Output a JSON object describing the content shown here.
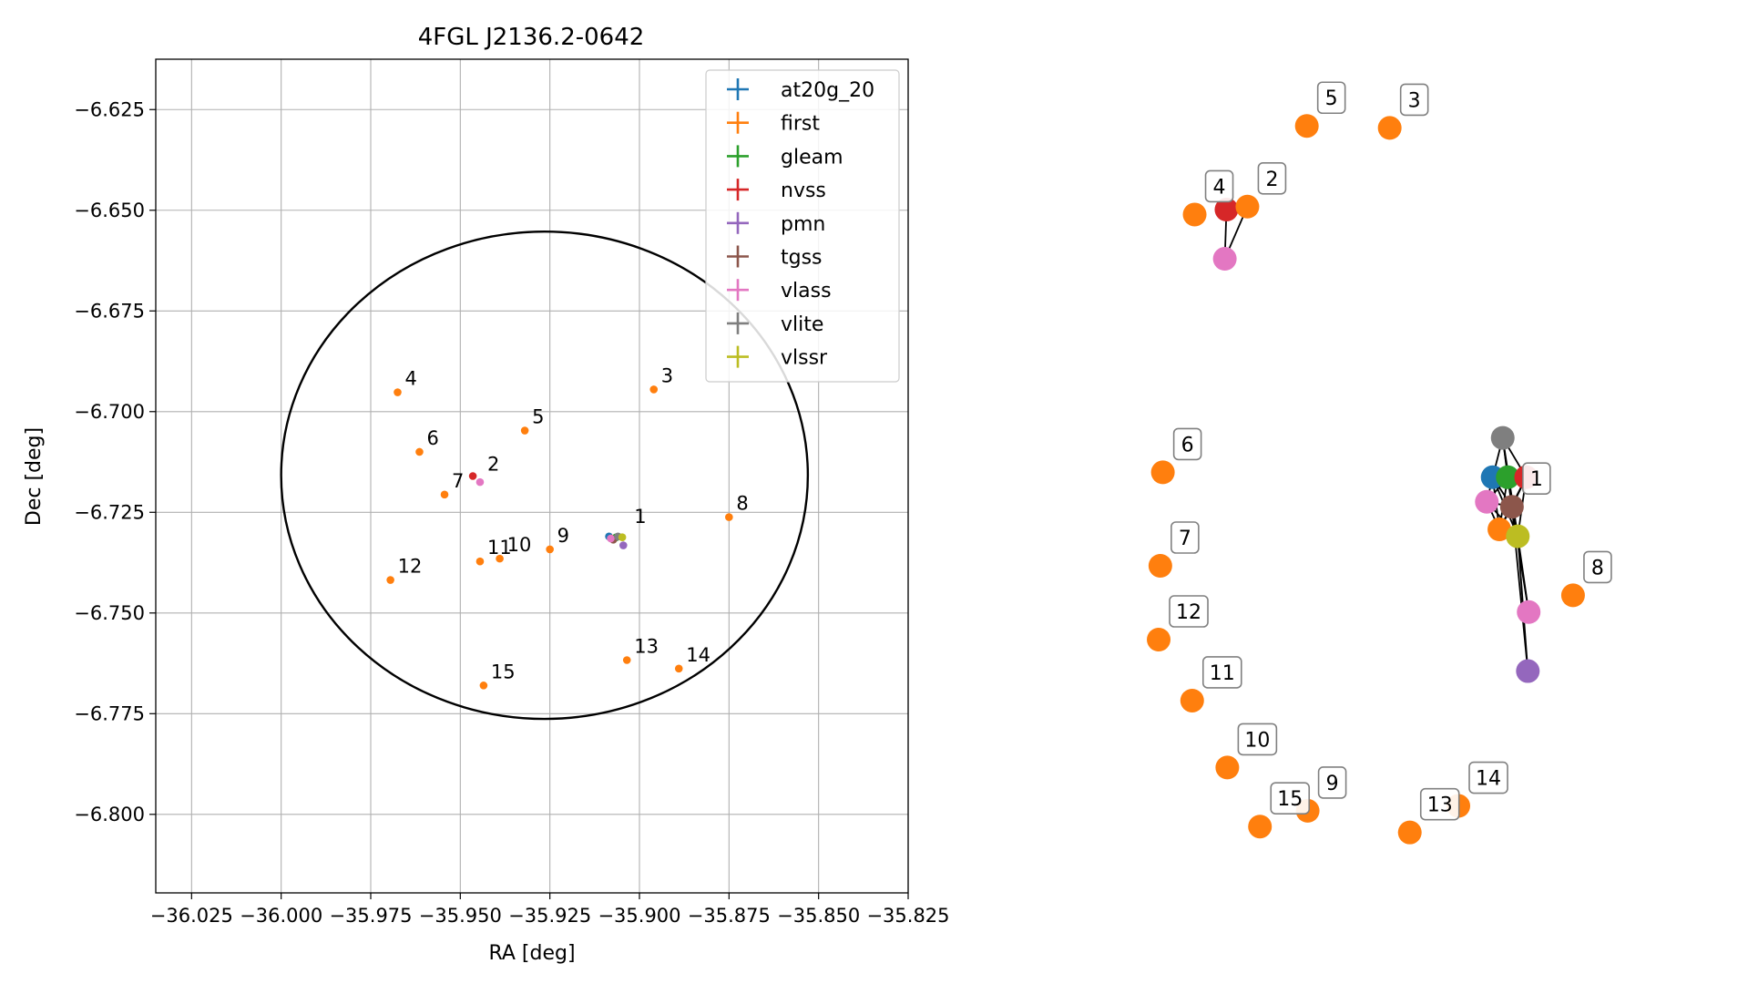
{
  "chart_data": [
    {
      "type": "scatter",
      "title": "4FGL J2136.2-0642",
      "xlabel": "RA [deg]",
      "ylabel": "Dec [deg]",
      "xlim": [
        -36.035,
        -35.825
      ],
      "ylim": [
        -6.8195,
        -6.6125
      ],
      "xticks": [
        -36.025,
        -36.0,
        -35.975,
        -35.95,
        -35.925,
        -35.9,
        -35.875,
        -35.85,
        -35.825
      ],
      "xtick_labels": [
        "−36.025",
        "−36.000",
        "−35.975",
        "−35.950",
        "−35.925",
        "−35.900",
        "−35.875",
        "−35.850",
        "−35.825"
      ],
      "yticks": [
        -6.625,
        -6.65,
        -6.675,
        -6.7,
        -6.725,
        -6.75,
        -6.775,
        -6.8
      ],
      "ytick_labels": [
        "−6.625",
        "−6.650",
        "−6.675",
        "−6.700",
        "−6.725",
        "−6.750",
        "−6.775",
        "−6.800"
      ],
      "grid": true,
      "legend_position": "top-right",
      "circle": {
        "center": [
          -35.9265,
          -6.7158
        ],
        "radius_ra": 0.0735,
        "radius_dec": 0.0605
      },
      "series": [
        {
          "name": "at20g_20",
          "color": "#1f77b4",
          "points": [
            [
              -35.9085,
              -6.731
            ]
          ]
        },
        {
          "name": "first",
          "color": "#ff7f0e",
          "points": [
            [
              -35.9078,
              -6.7315
            ],
            [
              -35.896,
              -6.6945
            ],
            [
              -35.9675,
              -6.6952
            ],
            [
              -35.932,
              -6.7047
            ],
            [
              -35.9614,
              -6.71
            ],
            [
              -35.9544,
              -6.7206
            ],
            [
              -35.875,
              -6.7262
            ],
            [
              -35.925,
              -6.7342
            ],
            [
              -35.939,
              -6.7365
            ],
            [
              -35.9445,
              -6.7372
            ],
            [
              -35.9695,
              -6.7418
            ],
            [
              -35.9035,
              -6.7617
            ],
            [
              -35.889,
              -6.7638
            ],
            [
              -35.9435,
              -6.768
            ]
          ]
        },
        {
          "name": "gleam",
          "color": "#2ca02c",
          "points": [
            [
              -35.9065,
              -6.7312
            ]
          ]
        },
        {
          "name": "nvss",
          "color": "#d62728",
          "points": [
            [
              -35.9465,
              -6.716
            ]
          ]
        },
        {
          "name": "pmn",
          "color": "#9467bd",
          "points": [
            [
              -35.9045,
              -6.7332
            ]
          ]
        },
        {
          "name": "tgss",
          "color": "#8c564b",
          "points": [
            [
              -35.9073,
              -6.7318
            ]
          ]
        },
        {
          "name": "vlass",
          "color": "#e377c2",
          "points": [
            [
              -35.9445,
              -6.7175
            ],
            [
              -35.908,
              -6.7315
            ]
          ]
        },
        {
          "name": "vlite",
          "color": "#7f7f7f",
          "points": [
            [
              -35.906,
              -6.731
            ]
          ]
        },
        {
          "name": "vlssr",
          "color": "#bcbd22",
          "points": [
            [
              -35.9048,
              -6.7312
            ]
          ]
        }
      ],
      "annotations": [
        {
          "text": "1",
          "x": -35.9035,
          "y": -6.7295
        },
        {
          "text": "2",
          "x": -35.9445,
          "y": -6.7165
        },
        {
          "text": "3",
          "x": -35.896,
          "y": -6.6945
        },
        {
          "text": "4",
          "x": -35.9675,
          "y": -6.6952
        },
        {
          "text": "5",
          "x": -35.932,
          "y": -6.7047
        },
        {
          "text": "6",
          "x": -35.9614,
          "y": -6.71
        },
        {
          "text": "7",
          "x": -35.9544,
          "y": -6.7206
        },
        {
          "text": "8",
          "x": -35.875,
          "y": -6.7262
        },
        {
          "text": "9",
          "x": -35.925,
          "y": -6.7342
        },
        {
          "text": "10",
          "x": -35.939,
          "y": -6.7365
        },
        {
          "text": "11",
          "x": -35.9445,
          "y": -6.7372
        },
        {
          "text": "12",
          "x": -35.9695,
          "y": -6.7418
        },
        {
          "text": "13",
          "x": -35.9035,
          "y": -6.7617
        },
        {
          "text": "14",
          "x": -35.889,
          "y": -6.7638
        },
        {
          "text": "15",
          "x": -35.9435,
          "y": -6.768
        }
      ]
    },
    {
      "type": "network",
      "nodes": [
        {
          "id": "n1-at20g",
          "color": "#1f77b4",
          "x": 0.695,
          "y": 0.515
        },
        {
          "id": "n1-gleam",
          "color": "#2ca02c",
          "x": 0.713,
          "y": 0.515
        },
        {
          "id": "n1-nvss",
          "color": "#d62728",
          "x": 0.735,
          "y": 0.515
        },
        {
          "id": "n1-vlite",
          "color": "#7f7f7f",
          "x": 0.707,
          "y": 0.555
        },
        {
          "id": "n1-vlass-a",
          "color": "#e377c2",
          "x": 0.688,
          "y": 0.49
        },
        {
          "id": "n1-tgss",
          "color": "#8c564b",
          "x": 0.718,
          "y": 0.485
        },
        {
          "id": "n1-first",
          "color": "#ff7f0e",
          "x": 0.703,
          "y": 0.462
        },
        {
          "id": "n1-vlssr",
          "color": "#bcbd22",
          "x": 0.725,
          "y": 0.455
        },
        {
          "id": "n1-vlass-b",
          "color": "#e377c2",
          "x": 0.738,
          "y": 0.378
        },
        {
          "id": "n1-pmn",
          "color": "#9467bd",
          "x": 0.737,
          "y": 0.318
        },
        {
          "id": "n2-nvss",
          "color": "#d62728",
          "x": 0.377,
          "y": 0.787
        },
        {
          "id": "n2-first",
          "color": "#ff7f0e",
          "x": 0.402,
          "y": 0.79
        },
        {
          "id": "n2-vlass",
          "color": "#e377c2",
          "x": 0.375,
          "y": 0.737
        },
        {
          "id": "n3",
          "color": "#ff7f0e",
          "x": 0.572,
          "y": 0.87
        },
        {
          "id": "n4",
          "color": "#ff7f0e",
          "x": 0.339,
          "y": 0.782
        },
        {
          "id": "n5",
          "color": "#ff7f0e",
          "x": 0.473,
          "y": 0.872
        },
        {
          "id": "n6",
          "color": "#ff7f0e",
          "x": 0.301,
          "y": 0.52
        },
        {
          "id": "n7",
          "color": "#ff7f0e",
          "x": 0.298,
          "y": 0.425
        },
        {
          "id": "n8",
          "color": "#ff7f0e",
          "x": 0.791,
          "y": 0.395
        },
        {
          "id": "n9",
          "color": "#ff7f0e",
          "x": 0.474,
          "y": 0.176
        },
        {
          "id": "n10",
          "color": "#ff7f0e",
          "x": 0.378,
          "y": 0.22
        },
        {
          "id": "n11",
          "color": "#ff7f0e",
          "x": 0.336,
          "y": 0.288
        },
        {
          "id": "n12",
          "color": "#ff7f0e",
          "x": 0.296,
          "y": 0.35
        },
        {
          "id": "n13",
          "color": "#ff7f0e",
          "x": 0.596,
          "y": 0.154
        },
        {
          "id": "n14",
          "color": "#ff7f0e",
          "x": 0.654,
          "y": 0.181
        },
        {
          "id": "n15",
          "color": "#ff7f0e",
          "x": 0.417,
          "y": 0.16
        }
      ],
      "labels": [
        {
          "text": "1",
          "node": "n1-tgss"
        },
        {
          "text": "2",
          "node": "n2-first"
        },
        {
          "text": "3",
          "node": "n3"
        },
        {
          "text": "4",
          "node": "n4"
        },
        {
          "text": "5",
          "node": "n5"
        },
        {
          "text": "6",
          "node": "n6"
        },
        {
          "text": "7",
          "node": "n7"
        },
        {
          "text": "8",
          "node": "n8"
        },
        {
          "text": "9",
          "node": "n9"
        },
        {
          "text": "10",
          "node": "n10"
        },
        {
          "text": "11",
          "node": "n11"
        },
        {
          "text": "12",
          "node": "n12"
        },
        {
          "text": "13",
          "node": "n13"
        },
        {
          "text": "14",
          "node": "n14"
        },
        {
          "text": "15",
          "node": "n15"
        }
      ],
      "edges": [
        [
          "n1-at20g",
          "n1-gleam"
        ],
        [
          "n1-at20g",
          "n1-vlite"
        ],
        [
          "n1-at20g",
          "n1-vlass-a"
        ],
        [
          "n1-at20g",
          "n1-tgss"
        ],
        [
          "n1-at20g",
          "n1-first"
        ],
        [
          "n1-at20g",
          "n1-vlssr"
        ],
        [
          "n1-gleam",
          "n1-nvss"
        ],
        [
          "n1-gleam",
          "n1-vlite"
        ],
        [
          "n1-gleam",
          "n1-vlass-a"
        ],
        [
          "n1-gleam",
          "n1-tgss"
        ],
        [
          "n1-gleam",
          "n1-first"
        ],
        [
          "n1-gleam",
          "n1-vlssr"
        ],
        [
          "n1-nvss",
          "n1-vlite"
        ],
        [
          "n1-nvss",
          "n1-tgss"
        ],
        [
          "n1-nvss",
          "n1-first"
        ],
        [
          "n1-nvss",
          "n1-vlssr"
        ],
        [
          "n1-vlite",
          "n1-tgss"
        ],
        [
          "n1-vlite",
          "n1-vlssr"
        ],
        [
          "n1-vlass-a",
          "n1-tgss"
        ],
        [
          "n1-vlass-a",
          "n1-first"
        ],
        [
          "n1-vlass-a",
          "n1-vlssr"
        ],
        [
          "n1-tgss",
          "n1-first"
        ],
        [
          "n1-tgss",
          "n1-vlssr"
        ],
        [
          "n1-first",
          "n1-vlssr"
        ],
        [
          "n1-tgss",
          "n1-vlass-b"
        ],
        [
          "n1-vlssr",
          "n1-vlass-b"
        ],
        [
          "n1-vlssr",
          "n1-pmn"
        ],
        [
          "n1-tgss",
          "n1-pmn"
        ],
        [
          "n2-nvss",
          "n2-first"
        ],
        [
          "n2-nvss",
          "n2-vlass"
        ],
        [
          "n2-first",
          "n2-vlass"
        ]
      ]
    }
  ]
}
